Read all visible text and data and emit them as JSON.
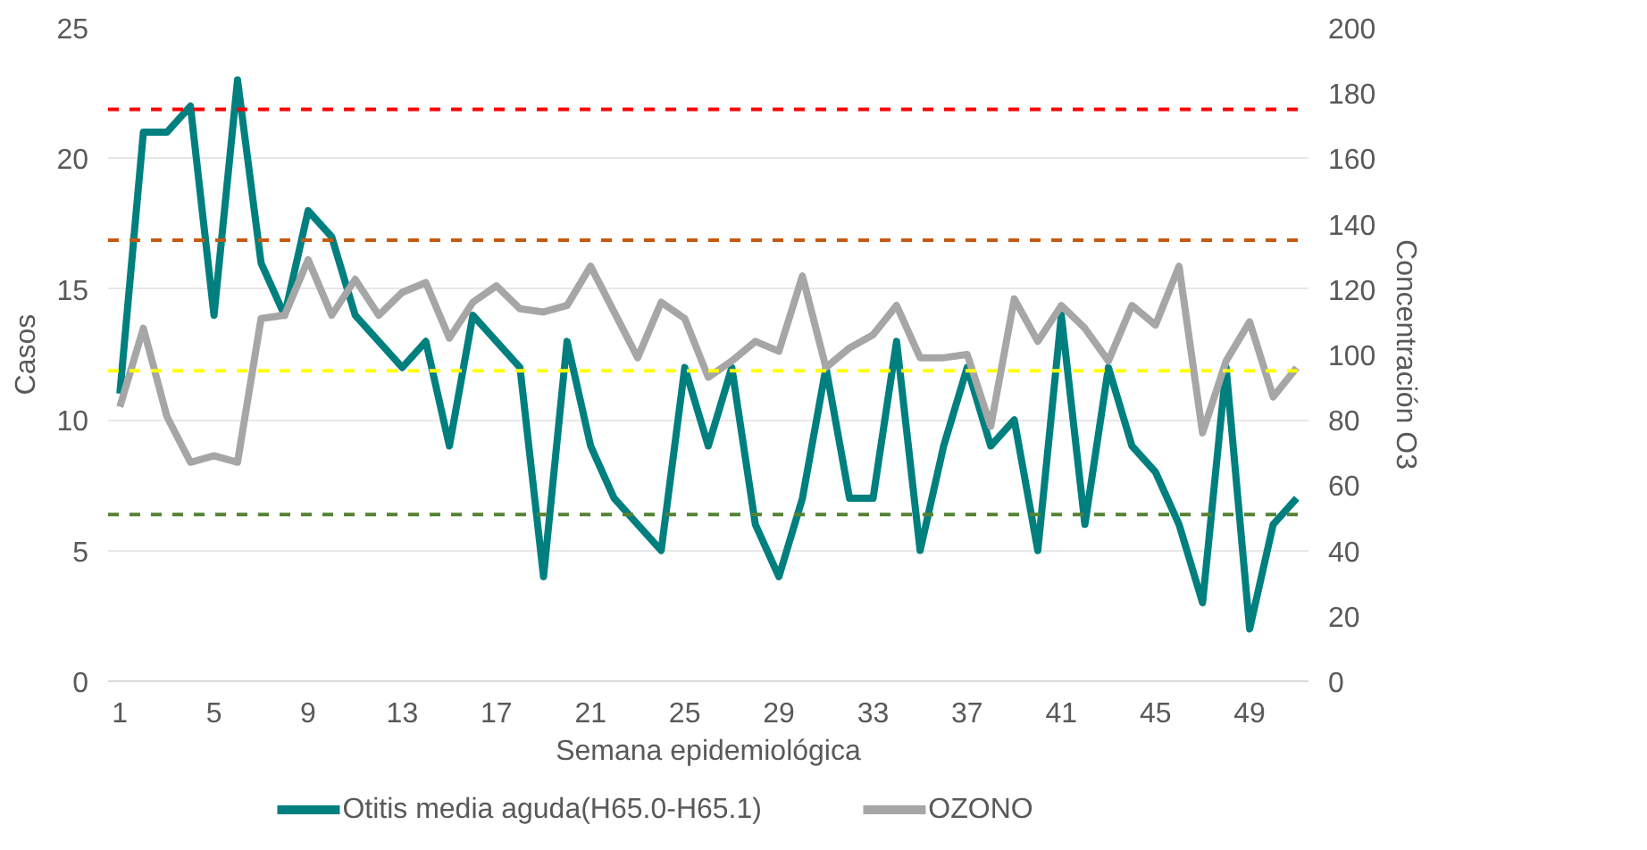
{
  "chart_data": {
    "type": "line",
    "xlabel": "Semana epidemiológica",
    "ylabel": "Casos",
    "y2label": "Concentración O3",
    "x": [
      1,
      2,
      3,
      4,
      5,
      6,
      7,
      8,
      9,
      10,
      11,
      12,
      13,
      14,
      15,
      16,
      17,
      18,
      19,
      20,
      21,
      22,
      23,
      24,
      25,
      26,
      27,
      28,
      29,
      30,
      31,
      32,
      33,
      34,
      35,
      36,
      37,
      38,
      39,
      40,
      41,
      42,
      43,
      44,
      45,
      46,
      47,
      48,
      49,
      50,
      51
    ],
    "xlim": [
      0.5,
      51.5
    ],
    "xticks": [
      1,
      5,
      9,
      13,
      17,
      21,
      25,
      29,
      33,
      37,
      41,
      45,
      49
    ],
    "ylim": [
      0,
      25
    ],
    "yticks": [
      0,
      5,
      10,
      15,
      20,
      25
    ],
    "y2lim": [
      0,
      200
    ],
    "y2ticks": [
      0,
      20,
      40,
      60,
      80,
      100,
      120,
      140,
      160,
      180,
      200
    ],
    "series": [
      {
        "name": "Otitis media aguda(H65.0-H65.1)",
        "color": "#007f7f",
        "values": [
          11,
          21,
          21,
          22,
          14,
          23,
          16,
          14,
          18,
          17,
          14,
          13,
          12,
          13,
          9,
          14,
          13,
          12,
          4,
          13,
          9,
          7,
          6,
          5,
          12,
          9,
          12,
          6,
          4,
          7,
          12,
          7,
          7,
          13,
          5,
          9,
          12,
          9,
          10,
          5,
          14,
          6,
          12,
          9,
          8,
          6,
          3,
          12,
          2,
          6,
          7
        ]
      },
      {
        "name": "OZONO",
        "color": "#a6a6a6",
        "axis": "y2",
        "values": [
          84,
          108,
          81,
          67,
          69,
          67,
          111,
          112,
          129,
          112,
          123,
          112,
          119,
          122,
          105,
          116,
          121,
          114,
          113,
          115,
          127,
          113,
          99,
          116,
          111,
          93,
          98,
          104,
          101,
          124,
          96,
          102,
          106,
          115,
          99,
          99,
          100,
          78,
          117,
          104,
          115,
          108,
          98,
          115,
          109,
          127,
          76,
          98,
          110,
          87,
          96
        ]
      }
    ],
    "ref_lines": [
      {
        "axis": "y2",
        "value": 175,
        "color": "#ff0000",
        "line_style": "dashed"
      },
      {
        "axis": "y2",
        "value": 135,
        "color": "#c55a11",
        "line_style": "dashed"
      },
      {
        "axis": "y2",
        "value": 95,
        "color": "#ffff00",
        "line_style": "dashed"
      },
      {
        "axis": "y2",
        "value": 51,
        "color": "#548235",
        "line_style": "dashed"
      }
    ],
    "grid": "y",
    "legend": "bottom",
    "marker": "none",
    "line_style": "solid"
  }
}
